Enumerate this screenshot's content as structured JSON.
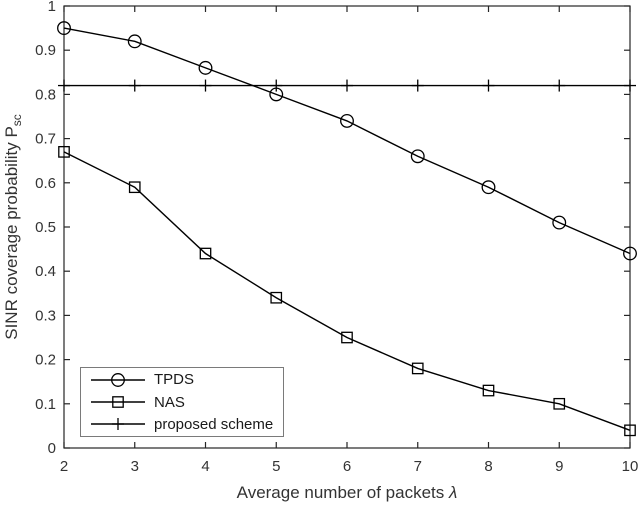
{
  "figure": {
    "background": "#ffffff",
    "axis_color": "#262626",
    "line_color": "#000000",
    "tick_label_color": "#333333",
    "legend_border_color": "#7a7a7a"
  },
  "chart_data": {
    "type": "line",
    "title": "",
    "xlabel": "Average number of packets λ",
    "xlabel_text": "Average number of packets ",
    "xlabel_symbol": "λ",
    "ylabel": "SINR coverage probability P_sc",
    "ylabel_text": "SINR coverage probability P",
    "ylabel_subscript": "sc",
    "x": [
      2,
      3,
      4,
      5,
      6,
      7,
      8,
      9,
      10
    ],
    "xlim": [
      2,
      10
    ],
    "ylim": [
      0,
      1
    ],
    "xtick_labels": [
      "2",
      "3",
      "4",
      "5",
      "6",
      "7",
      "8",
      "9",
      "10"
    ],
    "yticks": [
      0,
      0.1,
      0.2,
      0.3,
      0.4,
      0.5,
      0.6,
      0.7,
      0.8,
      0.9,
      1
    ],
    "ytick_labels": [
      "0",
      "0.1",
      "0.2",
      "0.3",
      "0.4",
      "0.5",
      "0.6",
      "0.7",
      "0.8",
      "0.9",
      "1"
    ],
    "grid": false,
    "legend_position": "lower-left",
    "series": [
      {
        "name": "TPDS",
        "marker": "circle",
        "values": [
          0.95,
          0.92,
          0.86,
          0.8,
          0.74,
          0.66,
          0.59,
          0.51,
          0.44
        ]
      },
      {
        "name": "NAS",
        "marker": "square",
        "values": [
          0.67,
          0.59,
          0.44,
          0.34,
          0.25,
          0.18,
          0.13,
          0.1,
          0.04
        ]
      },
      {
        "name": "proposed scheme",
        "marker": "plus",
        "values": [
          0.82,
          0.82,
          0.82,
          0.82,
          0.82,
          0.82,
          0.82,
          0.82,
          0.82
        ]
      }
    ]
  }
}
